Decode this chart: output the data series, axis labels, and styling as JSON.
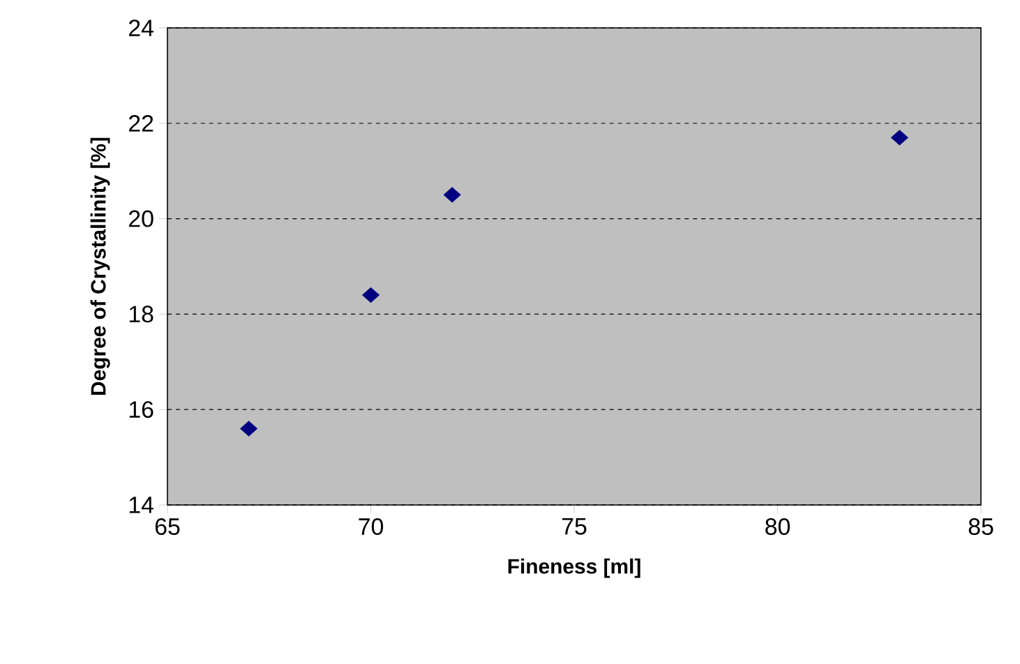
{
  "chart_data": {
    "type": "scatter",
    "xlabel": "Fineness [ml]",
    "ylabel": "Degree of Crystallinity [%]",
    "x": [
      67,
      70,
      72,
      83
    ],
    "series": [
      {
        "color": "#000080",
        "values": [
          15.6,
          18.4,
          20.5,
          21.7
        ]
      }
    ],
    "xlim": [
      65,
      85
    ],
    "xticks": [
      65,
      70,
      75,
      80,
      85
    ],
    "ylim": [
      14,
      24
    ],
    "yticks": [
      14,
      16,
      18,
      20,
      22,
      24
    ],
    "grid": "y",
    "marker": "diamond"
  }
}
